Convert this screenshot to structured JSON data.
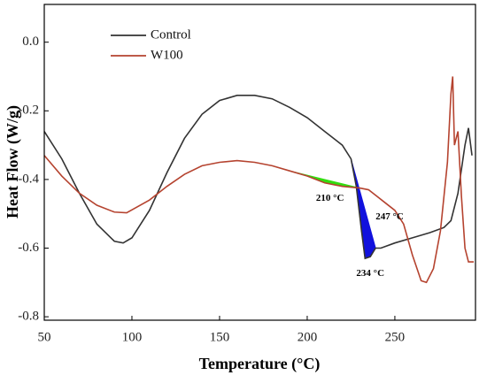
{
  "chart_data": {
    "type": "line",
    "x_label": "Temperature (°C)",
    "y_label": "Heat Flow (W/g)",
    "xlim": [
      50,
      296
    ],
    "ylim": [
      -0.81,
      0.11
    ],
    "xticks": [
      50,
      100,
      150,
      200,
      250
    ],
    "yticks": [
      {
        "value": 0,
        "label": "0.0"
      },
      -0.2,
      -0.4,
      -0.6,
      -0.8
    ],
    "legend": "upper left",
    "series": [
      {
        "name": "Control",
        "color": "#333333",
        "x": [
          50,
          60,
          70,
          80,
          90,
          95,
          100,
          110,
          120,
          130,
          140,
          150,
          160,
          170,
          180,
          190,
          200,
          210,
          220,
          225,
          228,
          231,
          233,
          236,
          239,
          242,
          250,
          260,
          270,
          278,
          282,
          286,
          290,
          292,
          294
        ],
        "values": [
          -0.26,
          -0.34,
          -0.44,
          -0.53,
          -0.58,
          -0.585,
          -0.57,
          -0.49,
          -0.38,
          -0.28,
          -0.21,
          -0.17,
          -0.155,
          -0.155,
          -0.165,
          -0.19,
          -0.22,
          -0.26,
          -0.3,
          -0.34,
          -0.42,
          -0.55,
          -0.63,
          -0.625,
          -0.6,
          -0.6,
          -0.585,
          -0.57,
          -0.555,
          -0.54,
          -0.52,
          -0.44,
          -0.3,
          -0.25,
          -0.33
        ]
      },
      {
        "name": "W100",
        "color": "#b5432f",
        "x": [
          50,
          60,
          70,
          80,
          90,
          97,
          110,
          120,
          130,
          140,
          150,
          160,
          170,
          180,
          190,
          200,
          210,
          220,
          230,
          235,
          240,
          245,
          250,
          255,
          260,
          265,
          268,
          272,
          276,
          280,
          282,
          283,
          284,
          286,
          288,
          290,
          292,
          295
        ],
        "values": [
          -0.33,
          -0.39,
          -0.44,
          -0.475,
          -0.495,
          -0.497,
          -0.46,
          -0.42,
          -0.385,
          -0.36,
          -0.35,
          -0.345,
          -0.35,
          -0.36,
          -0.375,
          -0.39,
          -0.41,
          -0.42,
          -0.425,
          -0.43,
          -0.45,
          -0.47,
          -0.49,
          -0.53,
          -0.62,
          -0.695,
          -0.7,
          -0.66,
          -0.55,
          -0.35,
          -0.15,
          -0.1,
          -0.3,
          -0.26,
          -0.45,
          -0.6,
          -0.64,
          -0.64
        ]
      }
    ],
    "shaded_regions": [
      {
        "series": 1,
        "from": 190,
        "to": 230,
        "color": "#33dd11"
      },
      {
        "series": 0,
        "from": 225,
        "to": 239,
        "color": "#1111dd"
      },
      {
        "series": 1,
        "from": 235,
        "to": 250,
        "color": "#1111dd"
      }
    ],
    "annotations": [
      {
        "text": "210 °C",
        "x": 213,
        "y": -0.455
      },
      {
        "text": "234 °C",
        "x": 236,
        "y": -0.675
      },
      {
        "text": "247 °C",
        "x": 247,
        "y": -0.51
      }
    ]
  }
}
